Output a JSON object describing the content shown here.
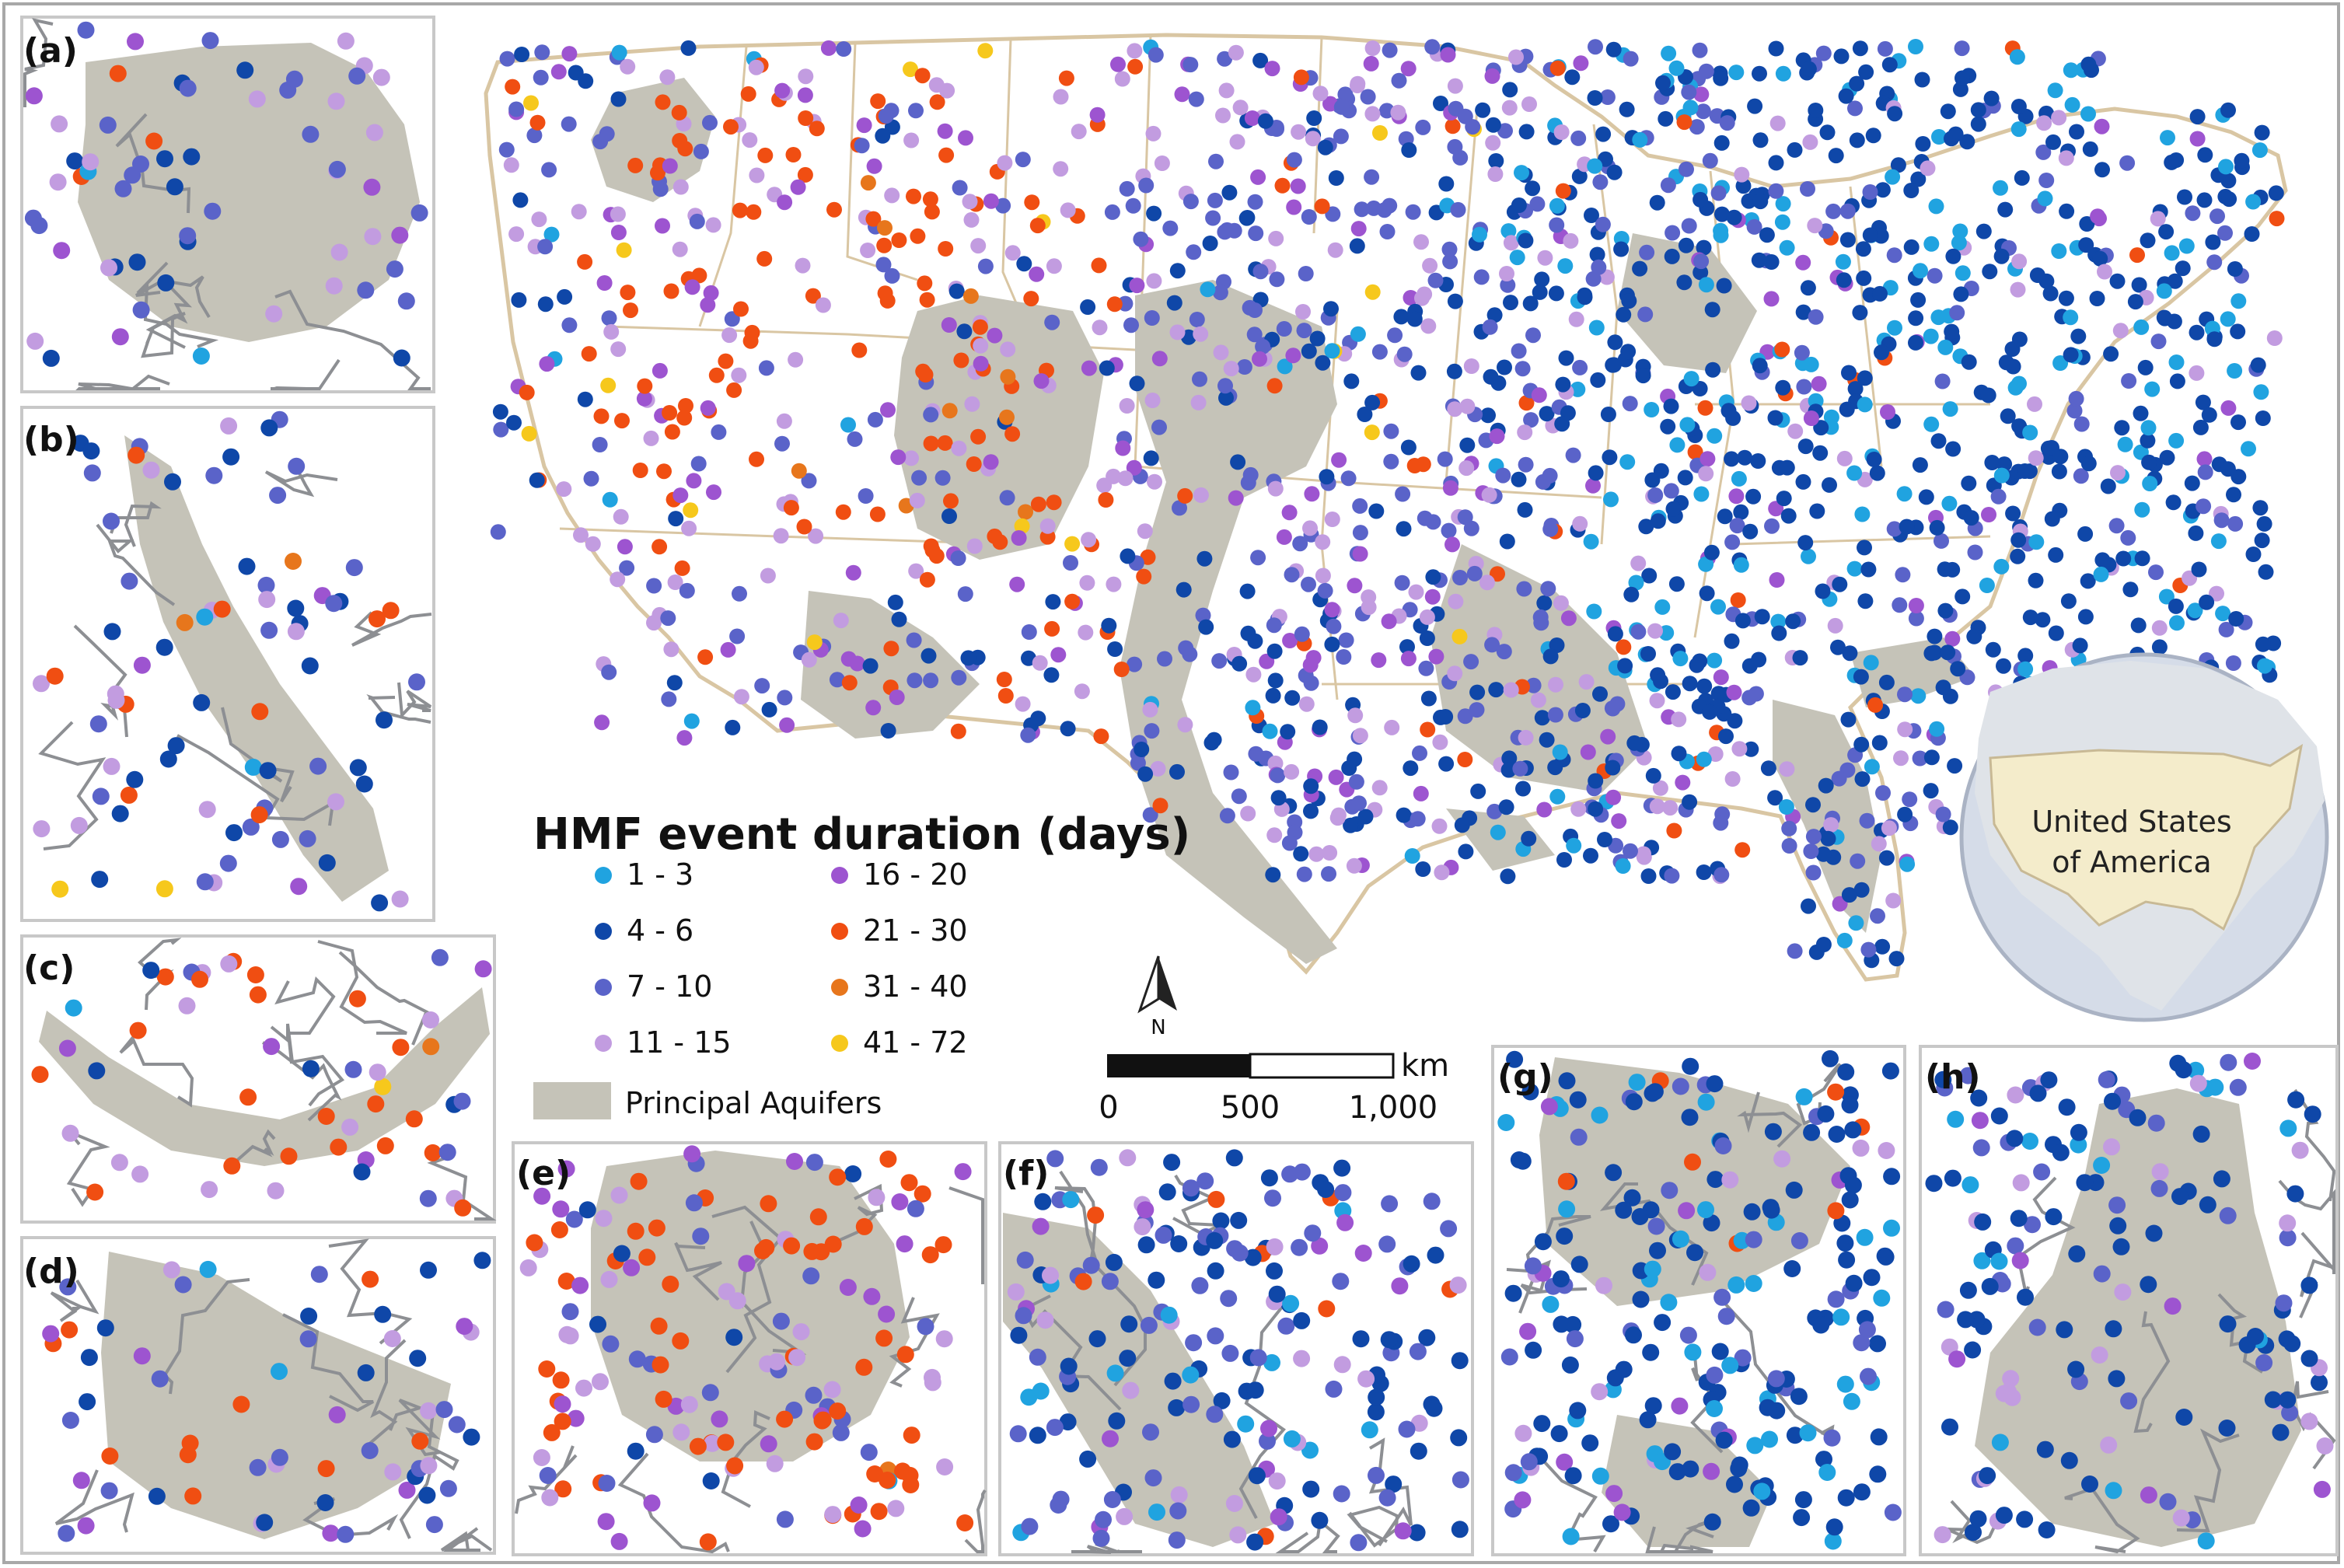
{
  "legend": {
    "title": "HMF event duration (days)",
    "classes": [
      {
        "label": "1 - 3",
        "color": "#20a3e0"
      },
      {
        "label": "4 - 6",
        "color": "#0f47a8"
      },
      {
        "label": "7 - 10",
        "color": "#5a63c9"
      },
      {
        "label": "11 - 15",
        "color": "#c29ce0"
      },
      {
        "label": "16 - 20",
        "color": "#9d54d0"
      },
      {
        "label": "21 - 30",
        "color": "#f04e12"
      },
      {
        "label": "31 - 40",
        "color": "#e7761c"
      },
      {
        "label": "41 - 72",
        "color": "#f6c81c"
      }
    ],
    "aquifer_label": "Principal Aquifers",
    "aquifer_color": "#c5c3b8"
  },
  "scale_bar": {
    "unit": "km",
    "ticks": [
      "0",
      "500",
      "1,000"
    ]
  },
  "north_arrow": {
    "label": "N"
  },
  "inset_globe": {
    "line1": "United States",
    "line2": "of America"
  },
  "panels": [
    "(a)",
    "(b)",
    "(c)",
    "(d)",
    "(e)",
    "(f)",
    "(g)",
    "(h)"
  ],
  "colors": {
    "state_border": "#d9c6a3",
    "river": "#8d8f93",
    "panel_border": "#c8c8c8",
    "globe_ocean": "#d5dce8",
    "globe_land": "#f4eccb"
  }
}
